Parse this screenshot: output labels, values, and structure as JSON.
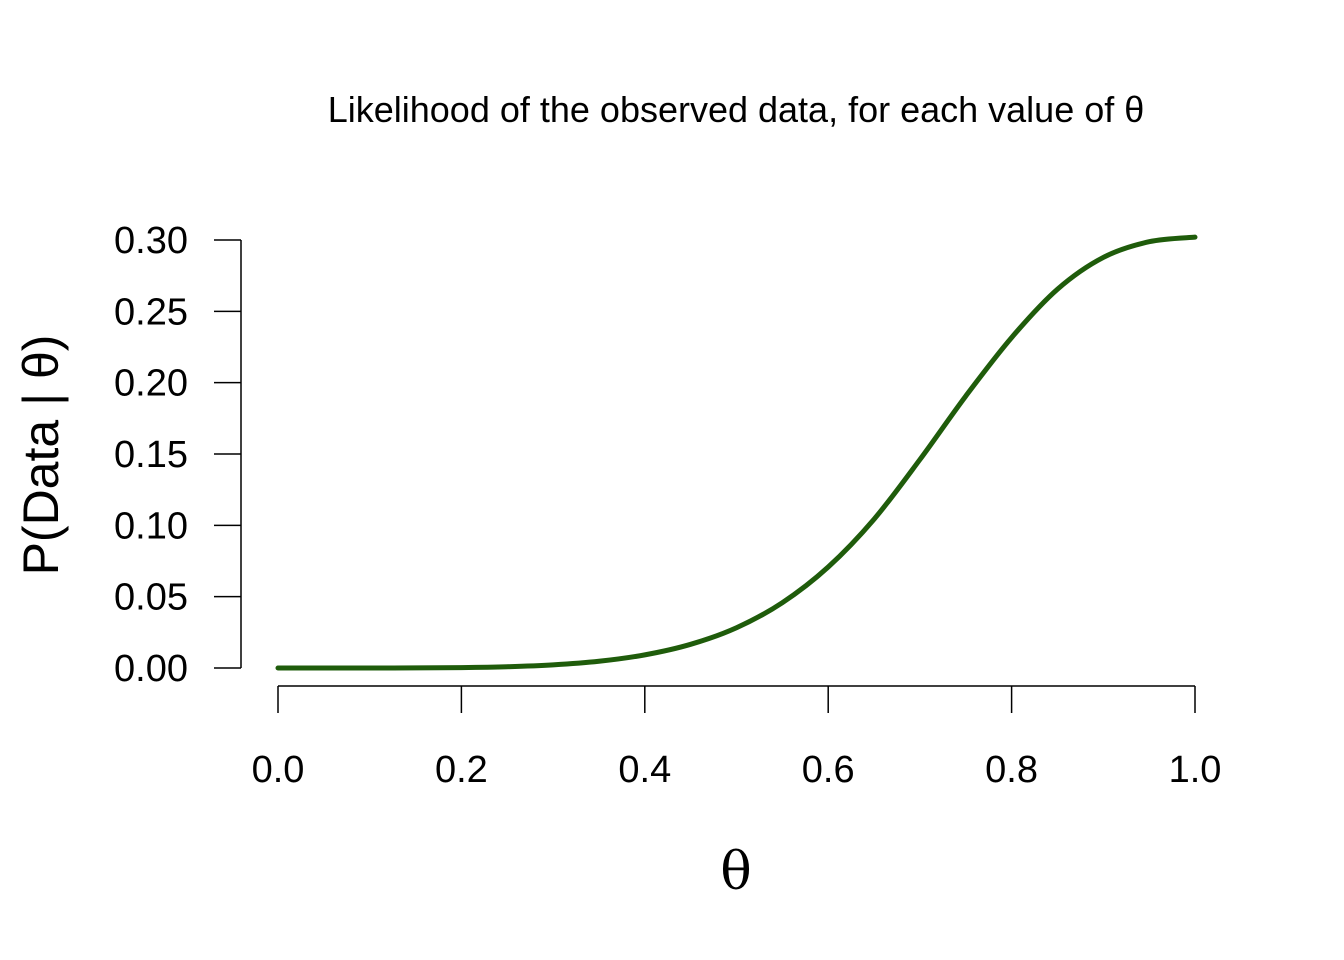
{
  "chart_data": {
    "type": "line",
    "title": "Likelihood of the observed data, for each value of θ",
    "xlabel": "θ",
    "ylabel": "P(Data | θ)",
    "xlim": [
      0,
      1
    ],
    "ylim": [
      0,
      0.3
    ],
    "x_ticks": [
      "0.0",
      "0.2",
      "0.4",
      "0.6",
      "0.8",
      "1.0"
    ],
    "y_ticks": [
      "0.00",
      "0.05",
      "0.10",
      "0.15",
      "0.20",
      "0.25",
      "0.30"
    ],
    "grid": false,
    "series": [
      {
        "color": "#1f5c0b",
        "x": [
          0.0,
          0.05,
          0.1,
          0.15,
          0.2,
          0.25,
          0.3,
          0.35,
          0.4,
          0.45,
          0.5,
          0.55,
          0.6,
          0.65,
          0.7,
          0.75,
          0.8,
          0.85,
          0.9,
          0.95,
          1.0
        ],
        "y": [
          0.0,
          0.0,
          0.0,
          0.0001,
          0.0003,
          0.0009,
          0.0022,
          0.0047,
          0.0092,
          0.0166,
          0.0282,
          0.0458,
          0.0708,
          0.1043,
          0.1461,
          0.1906,
          0.2316,
          0.2655,
          0.2878,
          0.2988,
          0.302
        ]
      }
    ]
  }
}
